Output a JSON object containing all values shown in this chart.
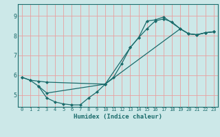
{
  "xlabel": "Humidex (Indice chaleur)",
  "bg_color": "#cce8e8",
  "line_color": "#1a6b6b",
  "grid_color": "#e8a0a0",
  "xlim": [
    -0.5,
    23.5
  ],
  "ylim": [
    4.4,
    9.6
  ],
  "yticks": [
    5,
    6,
    7,
    8,
    9
  ],
  "xticks": [
    0,
    1,
    2,
    3,
    4,
    5,
    6,
    7,
    8,
    9,
    10,
    11,
    12,
    13,
    14,
    15,
    16,
    17,
    18,
    19,
    20,
    21,
    22,
    23
  ],
  "line1_x": [
    0,
    1,
    2,
    3,
    4,
    5,
    6,
    7,
    8,
    9,
    10,
    11,
    12,
    13,
    14,
    15,
    16,
    17,
    18,
    19,
    20,
    21,
    22,
    23
  ],
  "line1_y": [
    5.9,
    5.75,
    5.45,
    4.85,
    4.65,
    4.55,
    4.5,
    4.5,
    4.85,
    5.15,
    5.55,
    5.9,
    6.6,
    7.4,
    7.9,
    8.35,
    8.75,
    8.85,
    8.7,
    8.35,
    8.1,
    8.05,
    8.15,
    8.2
  ],
  "line2_x": [
    0,
    1,
    2,
    3,
    10,
    19,
    20,
    21,
    22,
    23
  ],
  "line2_y": [
    5.9,
    5.75,
    5.7,
    5.65,
    5.55,
    8.35,
    8.1,
    8.05,
    8.15,
    8.2
  ],
  "line3_x": [
    2,
    3,
    10,
    13,
    14,
    15,
    16,
    17,
    19,
    20,
    21,
    22,
    23
  ],
  "line3_y": [
    5.45,
    5.1,
    5.55,
    7.4,
    7.9,
    8.75,
    8.8,
    8.95,
    8.35,
    8.1,
    8.05,
    8.15,
    8.2
  ]
}
